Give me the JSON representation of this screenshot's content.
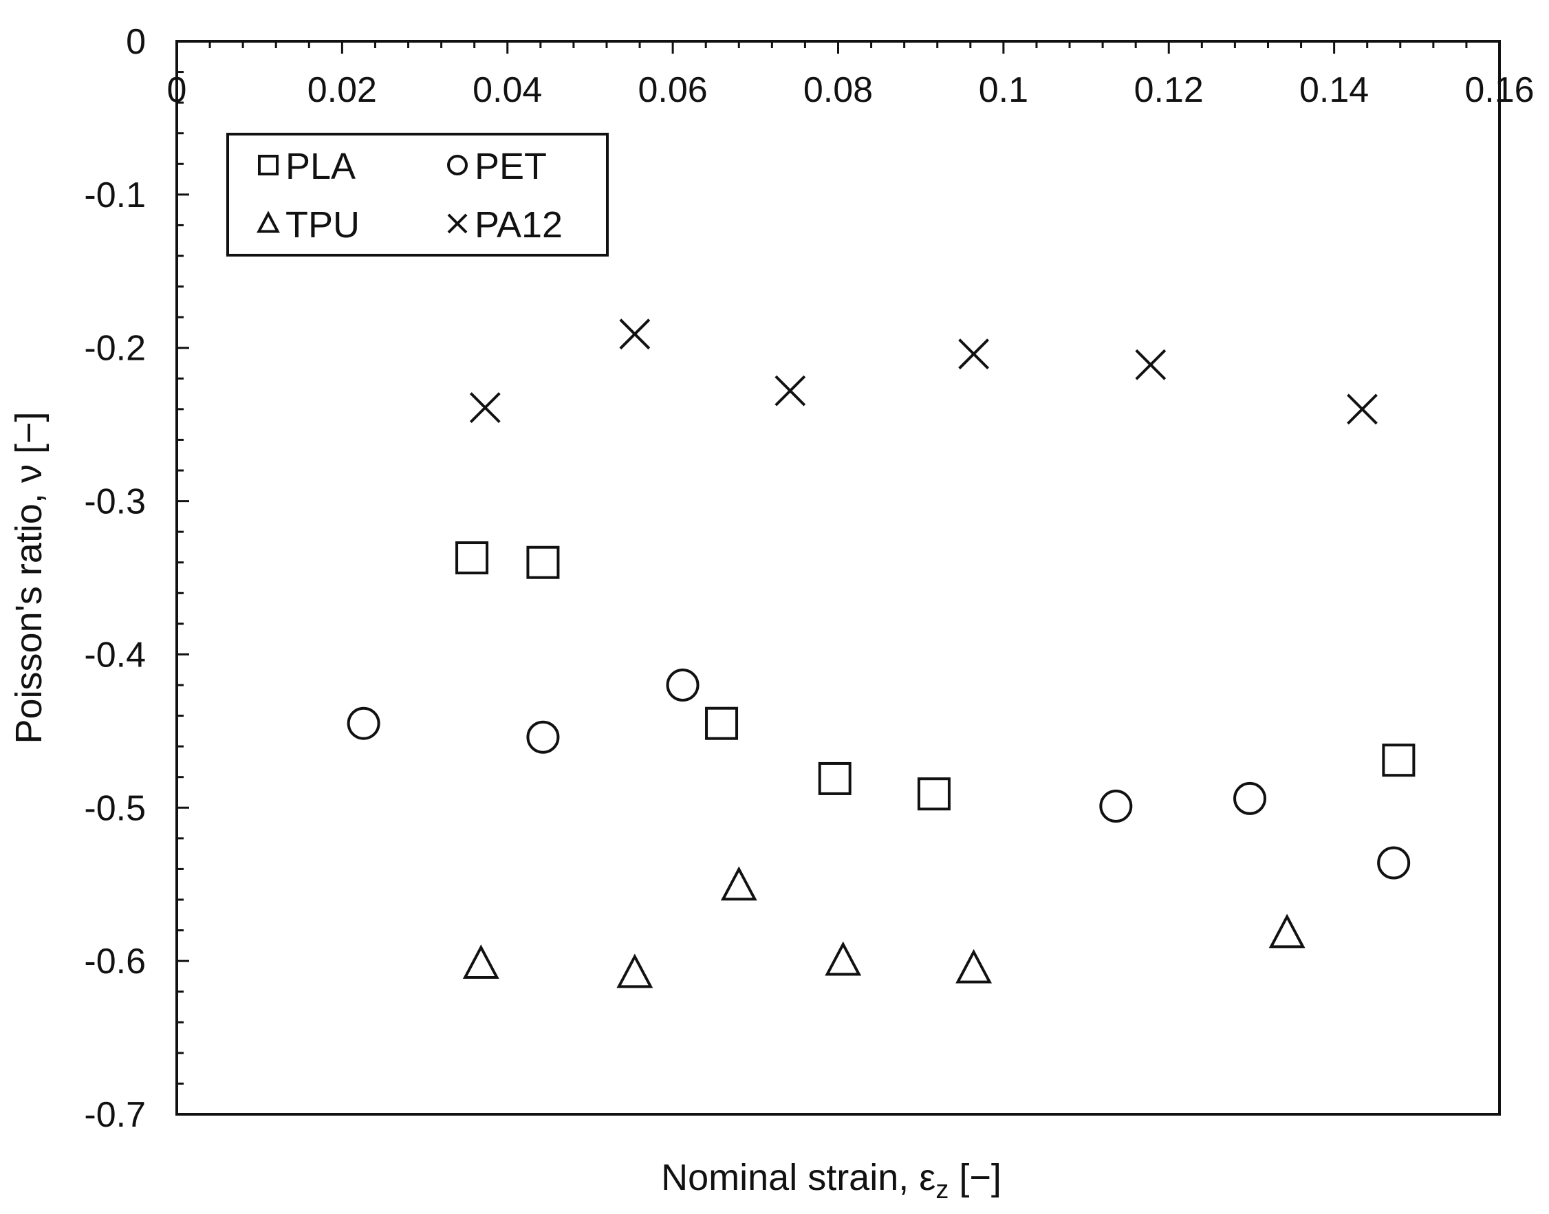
{
  "chart_data": {
    "type": "scatter",
    "title": "",
    "xlabel": "Nominal strain, ε",
    "xlabel_subscript": "z",
    "xlabel_suffix": " [−]",
    "ylabel": "Poisson's ratio, ν [−]",
    "xlim": [
      0,
      0.16
    ],
    "ylim": [
      -0.7,
      0
    ],
    "x_ticks": [
      "0",
      "0.02",
      "0.04",
      "0.06",
      "0.08",
      "0.1",
      "0.12",
      "0.14",
      "0.16"
    ],
    "y_ticks": [
      "0",
      "-0.1",
      "-0.2",
      "-0.3",
      "-0.4",
      "-0.5",
      "-0.6",
      "-0.7"
    ],
    "x_axis_position": "top",
    "grid": false,
    "legend_position": "top-left",
    "series": [
      {
        "name": "PLA",
        "marker": "square",
        "x": [
          0.0357,
          0.0443,
          0.0659,
          0.0796,
          0.0916,
          0.1478
        ],
        "y": [
          -0.337,
          -0.34,
          -0.445,
          -0.481,
          -0.491,
          -0.469
        ]
      },
      {
        "name": "PET",
        "marker": "circle",
        "x": [
          0.0226,
          0.0443,
          0.0612,
          0.1136,
          0.1298,
          0.1472
        ],
        "y": [
          -0.445,
          -0.454,
          -0.42,
          -0.499,
          -0.494,
          -0.536
        ]
      },
      {
        "name": "TPU",
        "marker": "triangle",
        "x": [
          0.0368,
          0.0554,
          0.068,
          0.0806,
          0.0964,
          0.1343
        ],
        "y": [
          -0.602,
          -0.608,
          -0.551,
          -0.6,
          -0.605,
          -0.582
        ]
      },
      {
        "name": "PA12",
        "marker": "x",
        "x": [
          0.0373,
          0.0554,
          0.0742,
          0.0964,
          0.1178,
          0.1434
        ],
        "y": [
          -0.239,
          -0.191,
          -0.228,
          -0.204,
          -0.211,
          -0.24
        ]
      }
    ]
  }
}
